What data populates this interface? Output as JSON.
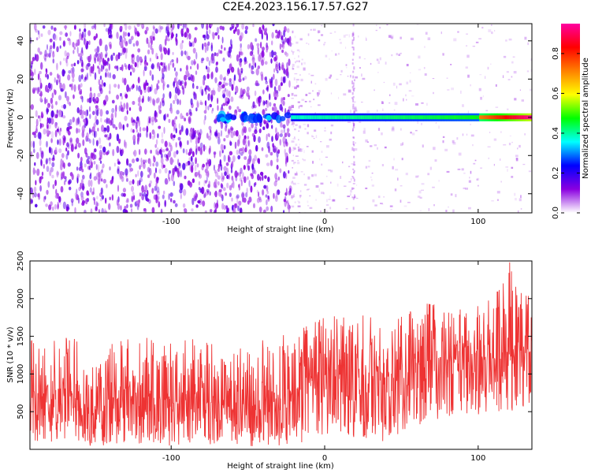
{
  "figure": {
    "title": "C2E4.2023.156.17.57.G27"
  },
  "chart_data": [
    {
      "type": "heatmap",
      "xlabel": "Height of straight line (km)",
      "ylabel": "Frequency (Hz)",
      "xlim": [
        -192,
        135
      ],
      "ylim": [
        -50,
        49
      ],
      "x_ticks": [
        -100,
        0,
        100
      ],
      "x_tick_labels": [
        "-100",
        "0",
        "100"
      ],
      "y_ticks": [
        -40,
        -20,
        0,
        20,
        40
      ],
      "y_tick_labels": [
        "-40",
        "-20",
        "0",
        "20",
        "40"
      ],
      "grid": false,
      "colorbar": {
        "label": "Normalized spectral amplitude",
        "range": [
          0.0,
          0.95
        ],
        "ticks": [
          0.0,
          0.2,
          0.4,
          0.6,
          0.8
        ],
        "tick_labels": [
          "0.0",
          "0.2",
          "0.4",
          "0.6",
          "0.8"
        ],
        "colormap": [
          "#ffffff",
          "#8a00e0",
          "#0000ff",
          "#00ffff",
          "#00ff00",
          "#ffff00",
          "#ff8000",
          "#ff0000",
          "#ff00a0"
        ]
      },
      "features": {
        "noise_region_x": [
          -192,
          -22
        ],
        "sparse_region_x": [
          -22,
          135
        ],
        "strong_line_frequency": 0,
        "strong_line_x": [
          -22,
          135
        ],
        "peak_amplitude_x": [
          100,
          135
        ]
      }
    },
    {
      "type": "line",
      "xlabel": "Height of straight line (km)",
      "ylabel": "SNR (10 * v/v)",
      "xlim": [
        -192,
        135
      ],
      "ylim": [
        0,
        2500
      ],
      "x_ticks": [
        -100,
        0,
        100
      ],
      "x_tick_labels": [
        "-100",
        "0",
        "100"
      ],
      "y_ticks": [
        500,
        1000,
        1500,
        2000,
        2500
      ],
      "y_tick_labels": [
        "500",
        "1000",
        "1500",
        "2000",
        "2500"
      ],
      "grid": false,
      "series": [
        {
          "color": "#ee3333",
          "envelope": [
            {
              "x": -192,
              "low": 50,
              "mean": 750,
              "high": 1450
            },
            {
              "x": -180,
              "low": 50,
              "mean": 720,
              "high": 1400
            },
            {
              "x": -165,
              "low": 50,
              "mean": 700,
              "high": 1550
            },
            {
              "x": -150,
              "low": 20,
              "mean": 520,
              "high": 1050
            },
            {
              "x": -140,
              "low": 50,
              "mean": 650,
              "high": 1400
            },
            {
              "x": -120,
              "low": 50,
              "mean": 700,
              "high": 1500
            },
            {
              "x": -100,
              "low": 50,
              "mean": 600,
              "high": 1400
            },
            {
              "x": -80,
              "low": 50,
              "mean": 650,
              "high": 1500
            },
            {
              "x": -60,
              "low": 30,
              "mean": 550,
              "high": 1300
            },
            {
              "x": -40,
              "low": 50,
              "mean": 600,
              "high": 1450
            },
            {
              "x": -20,
              "low": 50,
              "mean": 750,
              "high": 1550
            },
            {
              "x": 0,
              "low": 120,
              "mean": 950,
              "high": 1750
            },
            {
              "x": 20,
              "low": 150,
              "mean": 1000,
              "high": 1800
            },
            {
              "x": 40,
              "low": 100,
              "mean": 950,
              "high": 1700
            },
            {
              "x": 60,
              "low": 300,
              "mean": 1150,
              "high": 1950
            },
            {
              "x": 80,
              "low": 400,
              "mean": 1150,
              "high": 1900
            },
            {
              "x": 100,
              "low": 450,
              "mean": 1150,
              "high": 1900
            },
            {
              "x": 120,
              "low": 500,
              "mean": 1250,
              "high": 2500
            },
            {
              "x": 135,
              "low": 600,
              "mean": 1300,
              "high": 1950
            }
          ]
        }
      ]
    }
  ]
}
